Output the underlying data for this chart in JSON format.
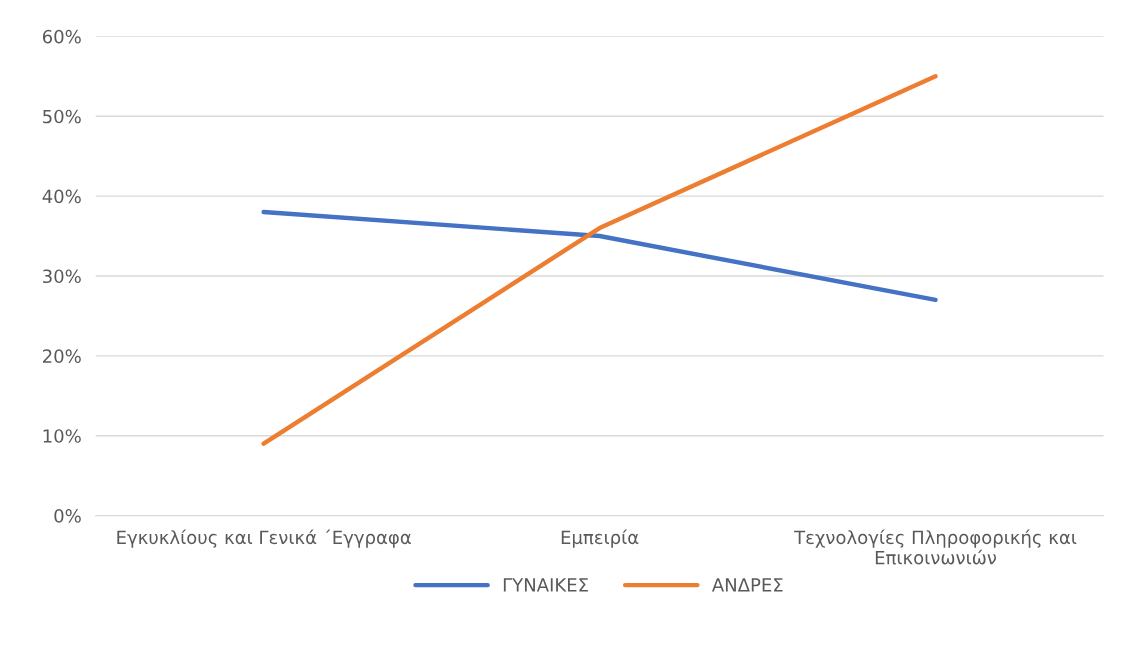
{
  "chart_data": {
    "type": "line",
    "categories": [
      "Εγκυκλίους και Γενικά ΄Εγγραφα",
      "Εμπειρία",
      "Τεχνολογίες Πληροφορικής και\nΕπικοινωνιών"
    ],
    "series": [
      {
        "name": "ΓΥΝΑΙΚΕΣ",
        "color": "#4472c4",
        "values": [
          38,
          35,
          27
        ]
      },
      {
        "name": "ΑΝΔΡΕΣ",
        "color": "#ed7d31",
        "values": [
          9,
          36,
          55
        ]
      }
    ],
    "ylim": [
      0,
      60
    ],
    "yticks": [
      {
        "value": 0,
        "label": "0%"
      },
      {
        "value": 10,
        "label": "10%"
      },
      {
        "value": 20,
        "label": "20%"
      },
      {
        "value": 30,
        "label": "30%"
      },
      {
        "value": 40,
        "label": "40%"
      },
      {
        "value": 50,
        "label": "50%"
      },
      {
        "value": 60,
        "label": "60%"
      }
    ],
    "grid": "y",
    "legend": "bottom",
    "marker": "none",
    "line_style": "solid"
  }
}
